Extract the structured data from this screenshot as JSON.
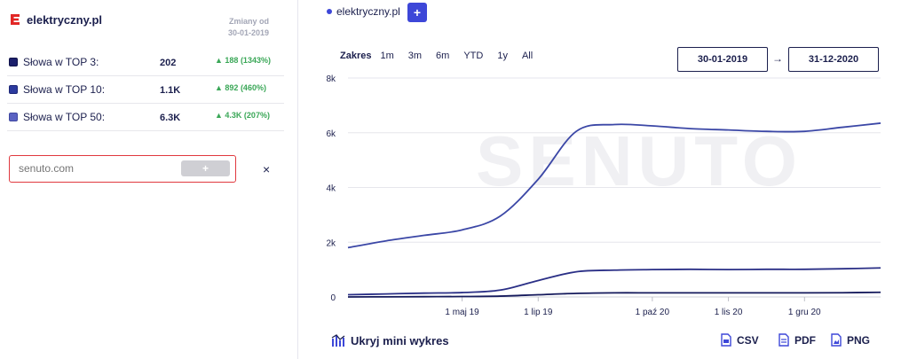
{
  "site": {
    "name": "elektryczny.pl"
  },
  "changes": {
    "label": "Zmiany od",
    "date": "30-01-2019"
  },
  "rows": [
    {
      "label": "Słowa w TOP 3:",
      "value": "202",
      "change": "188 (1343%)",
      "color": "#1b1f6b"
    },
    {
      "label": "Słowa w TOP 10:",
      "value": "1.1K",
      "change": "892 (460%)",
      "color": "#2c3a9e"
    },
    {
      "label": "Słowa w TOP 50:",
      "value": "6.3K",
      "change": "4.3K (207%)",
      "color": "#5a62c2"
    }
  ],
  "add_domain": {
    "placeholder": "senuto.com",
    "button": "+",
    "close": "×"
  },
  "legend": {
    "domain": "elektryczny.pl",
    "add_button": "+"
  },
  "range": {
    "title": "Zakres",
    "options": [
      "1m",
      "3m",
      "6m",
      "YTD",
      "1y",
      "All"
    ],
    "from": "30-01-2019",
    "arrow": "→",
    "to": "31-12-2020"
  },
  "watermark": "SENUTO",
  "footer": {
    "toggle": "Ukryj mini wykres",
    "csv": "CSV",
    "pdf": "PDF",
    "png": "PNG"
  },
  "chart_data": {
    "type": "line",
    "x": [
      "2019-01-30",
      "2019-03-01",
      "2019-04-01",
      "2019-05-01",
      "2019-06-01",
      "2019-07-01",
      "2019-08-01",
      "2019-09-01",
      "2019-10-01",
      "2019-11-01",
      "2019-12-01",
      "2020-01-01",
      "2020-02-01",
      "2020-03-01",
      "2020-04-01"
    ],
    "series": [
      {
        "values": [
          1800,
          2050,
          2250,
          2450,
          2950,
          4300,
          6050,
          6300,
          6250,
          6150,
          6100,
          6050,
          6050,
          6200,
          6350
        ],
        "color": "#3b47a6"
      },
      {
        "values": [
          80,
          110,
          140,
          160,
          250,
          600,
          920,
          980,
          1000,
          1010,
          1000,
          1010,
          1010,
          1030,
          1060
        ],
        "color": "#2a2f86"
      },
      {
        "values": [
          0,
          5,
          10,
          15,
          30,
          80,
          130,
          150,
          150,
          150,
          150,
          150,
          150,
          155,
          170
        ],
        "color": "#151a5c"
      }
    ],
    "yticks": [
      "0",
      "2k",
      "4k",
      "6k",
      "8k"
    ],
    "xticks": [
      "1 maj 19",
      "1 lip 19",
      "1 paź 20",
      "1 lis 20",
      "1 gru 20"
    ],
    "ylim": [
      0,
      8000
    ],
    "grid": true
  }
}
